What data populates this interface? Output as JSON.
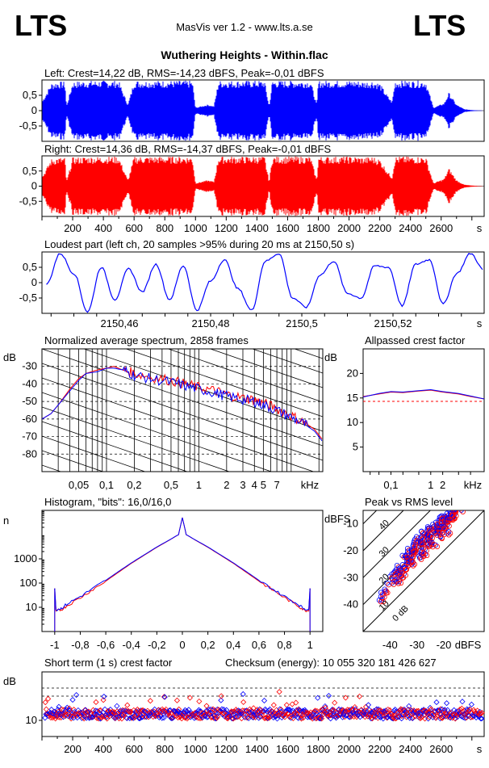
{
  "header": {
    "logo_left": "LTS",
    "logo_right": "LTS",
    "app": "MasVis ver 1.2 - www.lts.a.se",
    "file": "Wuthering Heights - Within.flac"
  },
  "chart_data": [
    {
      "id": "left",
      "type": "area",
      "title": "Left: Crest=14,22 dB, RMS=-14,23 dBFS, Peak=-0,01 dBFS",
      "ylim": [
        -1,
        1
      ],
      "yticks": [
        "0.5",
        "0",
        "-0.5"
      ],
      "color": "#0000ff",
      "xlim": [
        0,
        2880
      ],
      "envelope_x": [
        0,
        60,
        100,
        150,
        160,
        200,
        300,
        400,
        500,
        560,
        600,
        700,
        800,
        900,
        980,
        1000,
        1080,
        1120,
        1150,
        1200,
        1300,
        1400,
        1450,
        1480,
        1500,
        1600,
        1700,
        1750,
        1790,
        1800,
        1900,
        2000,
        2050,
        2100,
        2150,
        2200,
        2250,
        2280,
        2300,
        2350,
        2400,
        2500,
        2550,
        2620,
        2650,
        2700,
        2750,
        2800,
        2880
      ],
      "envelope_y": [
        0.3,
        0.9,
        0.95,
        0.95,
        0.15,
        0.95,
        0.98,
        0.98,
        0.98,
        0.2,
        0.98,
        0.98,
        0.98,
        0.98,
        0.98,
        0.1,
        0.2,
        0.15,
        0.98,
        0.98,
        0.98,
        0.98,
        0.98,
        0.15,
        0.98,
        0.98,
        0.98,
        0.98,
        0.2,
        0.98,
        0.98,
        0.98,
        0.98,
        0.95,
        0.98,
        0.9,
        0.5,
        0.3,
        0.98,
        0.98,
        0.98,
        0.98,
        0.1,
        0.25,
        0.6,
        0.2,
        0.05,
        0.02,
        0.0
      ]
    },
    {
      "id": "right",
      "type": "area",
      "title": "Right: Crest=14,36 dB, RMS=-14,37 dBFS, Peak=-0,01 dBFS",
      "ylim": [
        -1,
        1
      ],
      "yticks": [
        "0.5",
        "0",
        "-0.5"
      ],
      "xticks": [
        "200",
        "400",
        "600",
        "800",
        "1000",
        "1200",
        "1400",
        "1600",
        "1800",
        "2000",
        "2200",
        "2400",
        "2600",
        "s"
      ],
      "color": "#ff0000",
      "xlim": [
        0,
        2880
      ],
      "envelope_x": [
        0,
        60,
        100,
        150,
        160,
        200,
        300,
        400,
        500,
        560,
        600,
        700,
        800,
        900,
        980,
        1000,
        1080,
        1120,
        1150,
        1200,
        1300,
        1400,
        1450,
        1480,
        1500,
        1600,
        1700,
        1750,
        1790,
        1800,
        1900,
        2000,
        2050,
        2100,
        2150,
        2200,
        2250,
        2280,
        2300,
        2350,
        2400,
        2500,
        2550,
        2620,
        2650,
        2700,
        2750,
        2800,
        2880
      ],
      "envelope_y": [
        0.3,
        0.9,
        0.95,
        0.95,
        0.15,
        0.95,
        0.98,
        0.98,
        0.98,
        0.2,
        0.98,
        0.98,
        0.98,
        0.98,
        0.98,
        0.1,
        0.2,
        0.15,
        0.98,
        0.98,
        0.98,
        0.98,
        0.98,
        0.15,
        0.98,
        0.98,
        0.98,
        0.98,
        0.2,
        0.98,
        0.98,
        0.98,
        0.98,
        0.95,
        0.98,
        0.9,
        0.5,
        0.3,
        0.98,
        0.98,
        0.98,
        0.98,
        0.1,
        0.25,
        0.6,
        0.2,
        0.05,
        0.02,
        0.0
      ]
    },
    {
      "id": "loudest",
      "type": "line",
      "title": "Loudest part (left  ch, 20 samples >95% during 20 ms at 2150,50 s)",
      "xlim": [
        2150.443,
        2150.54
      ],
      "ylim": [
        -1,
        1
      ],
      "yticks": [
        "0.5",
        "0",
        "-0.5"
      ],
      "xticks": [
        "2150,46",
        "2150,48",
        "2150,5",
        "2150,52",
        "s"
      ],
      "x": [
        2150.444,
        2150.447,
        2150.45,
        2150.453,
        2150.456,
        2150.459,
        2150.462,
        2150.465,
        2150.468,
        2150.471,
        2150.474,
        2150.477,
        2150.48,
        2150.483,
        2150.486,
        2150.489,
        2150.492,
        2150.495,
        2150.498,
        2150.501,
        2150.504,
        2150.507,
        2150.51,
        2150.513,
        2150.516,
        2150.519,
        2150.522,
        2150.525,
        2150.528,
        2150.531,
        2150.534,
        2150.537,
        2150.54
      ],
      "y": [
        -0.05,
        0.95,
        0.3,
        -0.95,
        0.5,
        -0.55,
        0.45,
        -0.3,
        0.6,
        -0.55,
        0.55,
        -0.9,
        0.05,
        0.75,
        -0.2,
        -0.9,
        0.7,
        0.95,
        -0.5,
        -0.8,
        0.25,
        0.7,
        -0.35,
        -0.5,
        0.55,
        0.5,
        -0.75,
        0.6,
        0.75,
        -0.7,
        0.3,
        0.95,
        0.4
      ],
      "color": "#0000ff"
    },
    {
      "id": "spectrum",
      "type": "line",
      "title": "Normalized average spectrum, 2858 frames",
      "ylabel": "dB",
      "ylim": [
        -90,
        -20
      ],
      "yticks": [
        -30,
        -40,
        -50,
        -60,
        -70,
        -80
      ],
      "xscale": "log",
      "xlim": [
        0.02,
        22
      ],
      "xticks": [
        "0,05",
        "0,1",
        "0,2",
        "0,5",
        "1",
        "2",
        "3",
        "4",
        "5",
        "7",
        "kHz"
      ],
      "x": [
        0.02,
        0.025,
        0.03,
        0.04,
        0.05,
        0.06,
        0.08,
        0.1,
        0.12,
        0.15,
        0.2,
        0.3,
        0.5,
        0.7,
        1,
        1.5,
        2,
        3,
        4,
        5,
        7,
        10,
        14,
        18,
        22
      ],
      "series": [
        {
          "color": "#ff0000",
          "values": [
            -60,
            -57,
            -52,
            -43,
            -37,
            -34,
            -32,
            -31,
            -30,
            -32,
            -34,
            -36,
            -38,
            -40,
            -42,
            -44,
            -46,
            -48,
            -49,
            -51,
            -54,
            -58,
            -62,
            -66,
            -72
          ]
        },
        {
          "color": "#0000ff",
          "values": [
            -60,
            -57,
            -52,
            -44,
            -38,
            -34,
            -33,
            -31,
            -31,
            -32,
            -35,
            -37,
            -39,
            -41,
            -43,
            -45,
            -47,
            -49,
            -50,
            -52,
            -55,
            -59,
            -63,
            -67,
            -73
          ]
        }
      ]
    },
    {
      "id": "allpass",
      "type": "line",
      "title": "Allpassed crest factor",
      "ylabel": "dB",
      "ylim": [
        0,
        25
      ],
      "yticks": [
        20,
        15,
        10,
        5
      ],
      "xscale": "log",
      "xlim": [
        0.02,
        22
      ],
      "xticks": [
        "0,1",
        "1",
        "2",
        "kHz"
      ],
      "reference": 14.3,
      "x": [
        0.02,
        0.05,
        0.1,
        0.2,
        0.5,
        1,
        2,
        5,
        10,
        22
      ],
      "series": [
        {
          "color": "#ff0000",
          "values": [
            15.3,
            15.8,
            16.2,
            16.1,
            16.4,
            16.6,
            16.2,
            15.8,
            15.3,
            14.8
          ]
        },
        {
          "color": "#0000ff",
          "values": [
            15.2,
            15.9,
            16.3,
            16.2,
            16.5,
            16.7,
            16.3,
            15.9,
            15.4,
            14.8
          ]
        }
      ]
    },
    {
      "id": "histogram",
      "type": "line",
      "title": "Histogram, \"bits\": 16,0/16,0",
      "ylabel": "n",
      "yscale": "log",
      "ylim": [
        1,
        100000
      ],
      "yticks": [
        "1000",
        "100",
        "10"
      ],
      "xlim": [
        -1.1,
        1.1
      ],
      "xticks": [
        "-1",
        "-0,8",
        "-0,6",
        "-0,4",
        "-0,2",
        "0",
        "0,2",
        "0,4",
        "0,6",
        "0,8",
        "1"
      ],
      "x": [
        -1,
        -0.99,
        -0.95,
        -0.9,
        -0.8,
        -0.7,
        -0.6,
        -0.5,
        -0.4,
        -0.3,
        -0.2,
        -0.1,
        -0.03,
        0,
        0.03,
        0.1,
        0.2,
        0.3,
        0.4,
        0.5,
        0.6,
        0.7,
        0.8,
        0.9,
        0.95,
        0.99,
        1
      ],
      "series": [
        {
          "color": "#ff0000",
          "values": [
            60,
            7,
            8,
            12,
            25,
            55,
            120,
            280,
            650,
            1400,
            3000,
            6000,
            10000,
            50000,
            10000,
            6000,
            3000,
            1400,
            650,
            280,
            120,
            55,
            25,
            12,
            8,
            7,
            60
          ]
        },
        {
          "color": "#0000ff",
          "values": [
            60,
            8,
            9,
            14,
            28,
            60,
            130,
            300,
            680,
            1450,
            3100,
            6100,
            10000,
            50000,
            10000,
            6100,
            3100,
            1450,
            680,
            300,
            130,
            60,
            28,
            14,
            9,
            8,
            60
          ]
        }
      ]
    },
    {
      "id": "peakrms",
      "type": "scatter",
      "title": "Peak vs RMS level",
      "ylabel": "dBFS",
      "xlim": [
        -50,
        -5
      ],
      "ylim": [
        -50,
        -5
      ],
      "yticks": [
        -10,
        -20,
        -30,
        -40
      ],
      "xticks": [
        "-40",
        "-30",
        "-20",
        "dBFS"
      ],
      "diagonal_labels": [
        "40",
        "30",
        "20",
        "10",
        "0 dB"
      ],
      "points": [
        [
          -44,
          -37
        ],
        [
          -42,
          -34
        ],
        [
          -40,
          -31
        ],
        [
          -38,
          -29
        ],
        [
          -37,
          -28
        ],
        [
          -36,
          -26
        ],
        [
          -35,
          -24
        ],
        [
          -34,
          -23
        ],
        [
          -33,
          -21
        ],
        [
          -32,
          -20
        ],
        [
          -31,
          -19
        ],
        [
          -30,
          -17
        ],
        [
          -29,
          -16
        ],
        [
          -28,
          -15
        ],
        [
          -27,
          -14
        ],
        [
          -26,
          -13
        ],
        [
          -25,
          -12
        ],
        [
          -24,
          -11
        ],
        [
          -23,
          -10
        ],
        [
          -22,
          -9
        ],
        [
          -21,
          -8
        ],
        [
          -20,
          -8
        ],
        [
          -19,
          -7
        ],
        [
          -18,
          -6
        ],
        [
          -17,
          -6
        ],
        [
          -16,
          -5
        ],
        [
          -15,
          -5
        ],
        [
          -35,
          -26
        ],
        [
          -30,
          -19
        ],
        [
          -25,
          -15
        ],
        [
          -20,
          -10
        ],
        [
          -33,
          -23
        ],
        [
          -28,
          -18
        ],
        [
          -23,
          -12
        ],
        [
          -18,
          -8
        ],
        [
          -38,
          -32
        ],
        [
          -32,
          -24
        ],
        [
          -26,
          -17
        ],
        [
          -21,
          -12
        ],
        [
          -29,
          -22
        ],
        [
          -24,
          -17
        ],
        [
          -19,
          -12
        ],
        [
          -36,
          -30
        ],
        [
          -27,
          -20
        ],
        [
          -22,
          -14
        ],
        [
          -17,
          -9
        ]
      ]
    },
    {
      "id": "crest",
      "type": "scatter",
      "title": "Short term (1 s) crest factor",
      "checksum": "Checksum (energy):  10 055 320 181 426 627",
      "ylabel": "dB",
      "ylim": [
        5,
        25
      ],
      "yticks": [
        10
      ],
      "reference_lines": [
        20,
        17.5
      ],
      "xlim": [
        0,
        2880
      ],
      "xticks": [
        "200",
        "400",
        "600",
        "800",
        "1000",
        "1200",
        "1400",
        "1600",
        "1800",
        "2000",
        "2200",
        "2400",
        "2600",
        "s"
      ],
      "baseline": 12
    }
  ]
}
